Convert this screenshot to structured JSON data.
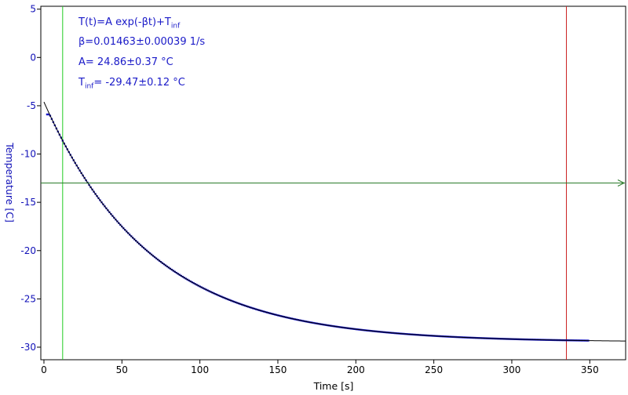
{
  "chart_data": {
    "type": "scatter",
    "title": "",
    "xlabel": "Time [s]",
    "ylabel": "Temperature [C]",
    "xlim": [
      -2,
      373
    ],
    "ylim": [
      -31.3,
      5.3
    ],
    "x_ticks": [
      0,
      50,
      100,
      150,
      200,
      250,
      300,
      350
    ],
    "y_ticks": [
      5,
      0,
      -5,
      -10,
      -15,
      -20,
      -25,
      -30
    ],
    "grid": false,
    "series": [
      {
        "kind": "data",
        "color": "#1a1ac8",
        "t_start": 2,
        "t_end": 349,
        "t_step": 1,
        "initial_plateau": -5.9,
        "plateau_until": 6
      },
      {
        "kind": "fit",
        "color": "#000000",
        "t_start": 0,
        "t_end": 373
      }
    ],
    "fit": {
      "equation_main": "T(t)=A exp(-βt)+T",
      "equation_sub": "inf",
      "beta_text": "β=0.01463±0.00039 1/s",
      "a_text": "A= 24.86±0.37 °C",
      "tinf_label_main": "T",
      "tinf_label_sub": "inf",
      "tinf_value_text": "= -29.47±0.12 °C",
      "beta": 0.01463,
      "A": 24.86,
      "T_inf": -29.47
    },
    "markers": {
      "vertical_green_x": 12,
      "vertical_red_x": 335,
      "horizontal_green_y": -13,
      "green_color": "#22cc22",
      "red_color": "#cc2222",
      "hline_color": "#2a7a2a"
    }
  }
}
